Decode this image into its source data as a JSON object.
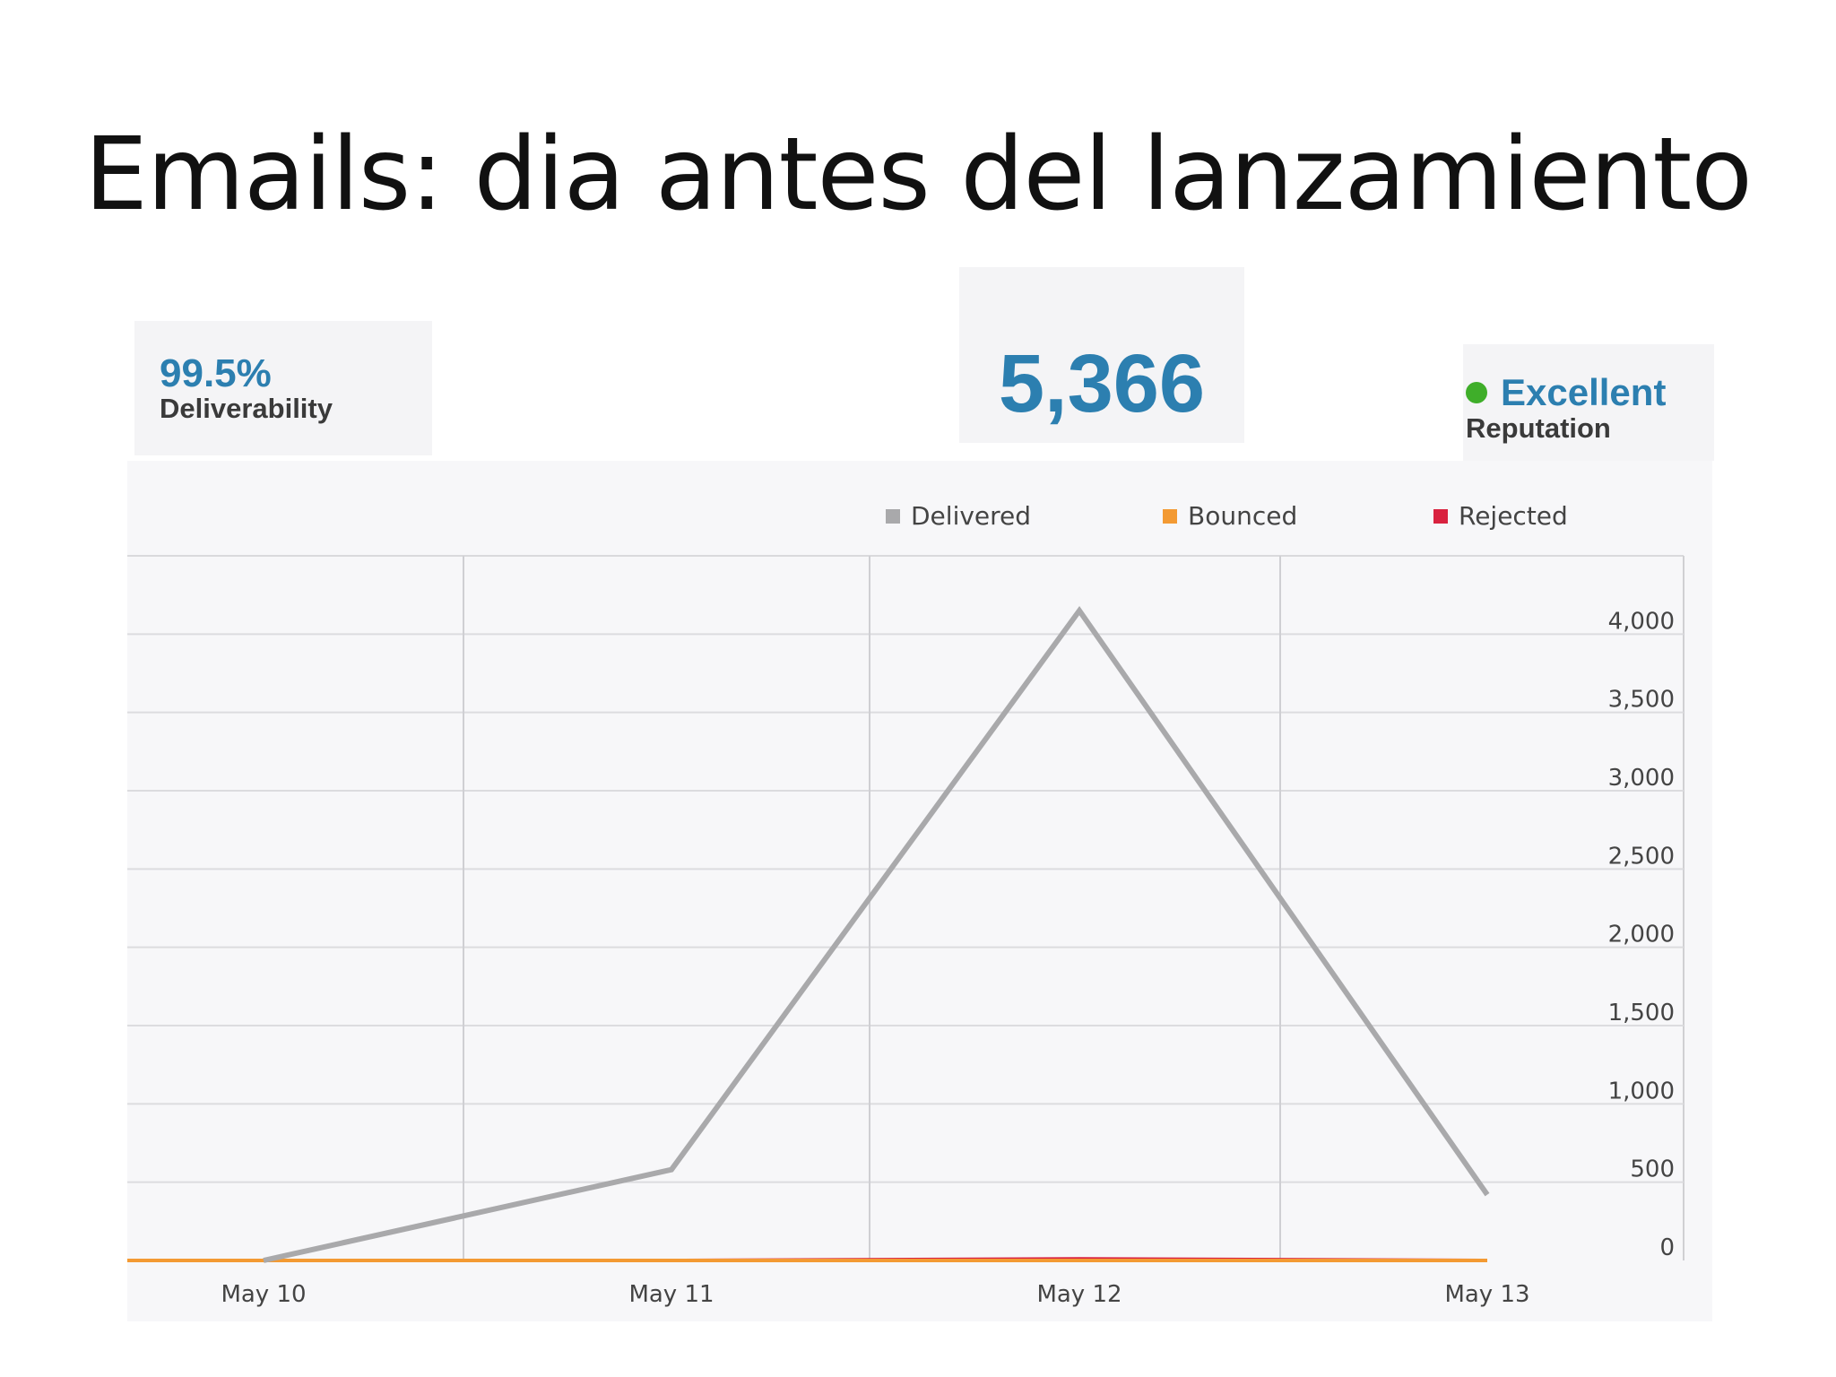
{
  "slide": {
    "title": "Emails: dia antes del lanzamiento"
  },
  "stats": {
    "deliverability": {
      "value": "99.5%",
      "label": "Deliverability"
    },
    "total": {
      "value": "5,366"
    },
    "reputation": {
      "value": "Excellent",
      "label": "Reputation",
      "status_color": "#3fae2a"
    }
  },
  "colors": {
    "accent": "#2c7fb0",
    "delivered": "#a9a9ab",
    "bounced": "#f39a33",
    "rejected": "#d9223f"
  },
  "chart_data": {
    "type": "line",
    "categories": [
      "May 10",
      "May 11",
      "May 12",
      "May 13"
    ],
    "y_ticks": [
      "0",
      "500",
      "1,000",
      "1,500",
      "2,000",
      "2,500",
      "3,000",
      "3,500",
      "4,000"
    ],
    "ylim": [
      0,
      4500
    ],
    "grid": true,
    "legend_position": "top-right",
    "y_axis_position": "right",
    "series": [
      {
        "name": "Delivered",
        "color": "#a9a9ab",
        "points": [
          {
            "x": "May 10",
            "y": 0
          },
          {
            "x": "May 11",
            "y": 580
          },
          {
            "x": "May 12",
            "y": 4150
          },
          {
            "x": "May 13",
            "y": 420
          }
        ]
      },
      {
        "name": "Bounced",
        "color": "#f39a33",
        "points": [
          {
            "x": "May 10",
            "y": 0
          },
          {
            "x": "May 11",
            "y": 0
          },
          {
            "x": "May 12",
            "y": 0
          },
          {
            "x": "May 13",
            "y": 0
          }
        ]
      },
      {
        "name": "Rejected",
        "color": "#d9223f",
        "points": [
          {
            "x": "May 10",
            "y": 0
          },
          {
            "x": "May 11",
            "y": 0
          },
          {
            "x": "May 12",
            "y": 10
          },
          {
            "x": "May 13",
            "y": 0
          }
        ]
      }
    ]
  }
}
